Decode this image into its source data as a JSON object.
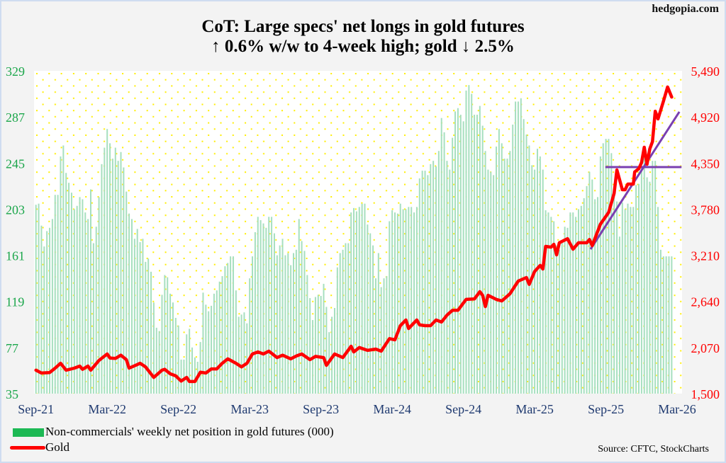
{
  "brand": "hedgopia.com",
  "chart_data": {
    "type": "bar+line",
    "title": "CoT: Large specs' net longs in gold futures",
    "subtitle": "↑ 0.6% w/w to 4-week high; gold ↓ 2.5%",
    "left_axis": {
      "ticks": [
        "329",
        "287",
        "245",
        "203",
        "161",
        "119",
        "77",
        "35"
      ],
      "ylim": [
        35,
        329
      ],
      "color": "#1aa64a"
    },
    "right_axis": {
      "ticks": [
        "5,490",
        "4,920",
        "4,350",
        "3,780",
        "3,210",
        "2,640",
        "2,070",
        "1,500"
      ],
      "ylim": [
        1500,
        5490
      ],
      "color": "#ff0000"
    },
    "x_ticks": [
      {
        "label": "Sep-21",
        "week": 0
      },
      {
        "label": "Mar-22",
        "week": 26
      },
      {
        "label": "Sep-22",
        "week": 52
      },
      {
        "label": "Mar-23",
        "week": 78
      },
      {
        "label": "Sep-23",
        "week": 104
      },
      {
        "label": "Mar-24",
        "week": 130
      },
      {
        "label": "Sep-24",
        "week": 156
      },
      {
        "label": "Mar-25",
        "week": 182
      },
      {
        "label": "Sep-25",
        "week": 208
      },
      {
        "label": "Mar-26",
        "week": 234
      }
    ],
    "grid": "dotted",
    "series": [
      {
        "name": "Non-commercials' weekly net position in gold futures (000)",
        "type": "bar",
        "color": "#a6dfbf",
        "values": [
          207,
          208,
          188,
          169,
          183,
          186,
          194,
          216,
          216,
          251,
          261,
          236,
          227,
          218,
          203,
          206,
          214,
          212,
          200,
          194,
          221,
          172,
          187,
          214,
          244,
          259,
          276,
          263,
          249,
          259,
          247,
          255,
          241,
          219,
          199,
          194,
          176,
          185,
          173,
          176,
          155,
          158,
          146,
          118,
          95,
          92,
          125,
          143,
          141,
          126,
          118,
          104,
          97,
          66,
          66,
          89,
          94,
          77,
          68,
          64,
          82,
          127,
          116,
          110,
          115,
          126,
          129,
          137,
          142,
          151,
          154,
          160,
          160,
          129,
          105,
          107,
          109,
          99,
          140,
          160,
          182,
          196,
          193,
          190,
          186,
          196,
          196,
          181,
          161,
          170,
          176,
          161,
          163,
          152,
          163,
          166,
          194,
          174,
          165,
          143,
          122,
          102,
          123,
          125,
          124,
          135,
          114,
          91,
          105,
          113,
          150,
          163,
          166,
          172,
          172,
          200,
          204,
          201,
          205,
          208,
          208,
          189,
          181,
          170,
          140,
          163,
          132,
          140,
          142,
          192,
          202,
          200,
          199,
          208,
          203,
          203,
          205,
          205,
          200,
          205,
          231,
          238,
          238,
          234,
          244,
          247,
          242,
          256,
          286,
          273,
          247,
          239,
          268,
          292,
          295,
          289,
          283,
          311,
          316,
          308,
          289,
          289,
          297,
          279,
          256,
          239,
          237,
          234,
          260,
          276,
          263,
          249,
          249,
          256,
          280,
          301,
          301,
          304,
          285,
          271,
          261,
          243,
          239,
          258,
          251,
          239,
          202,
          200,
          196,
          192,
          170,
          166,
          174,
          187,
          186,
          200,
          200,
          196,
          203,
          206,
          213,
          224,
          237,
          230,
          212,
          214,
          251,
          263,
          267,
          267,
          254,
          224,
          210,
          178,
          209,
          203,
          208,
          205,
          205,
          225,
          226,
          241,
          252,
          232,
          228,
          247,
          247,
          205,
          166,
          160,
          160,
          160,
          160
        ]
      },
      {
        "name": "Gold",
        "type": "line",
        "color": "#ff0000",
        "points": [
          [
            0,
            1790
          ],
          [
            2,
            1755
          ],
          [
            5,
            1760
          ],
          [
            7,
            1815
          ],
          [
            9,
            1875
          ],
          [
            11,
            1790
          ],
          [
            14,
            1815
          ],
          [
            16,
            1840
          ],
          [
            17,
            1800
          ],
          [
            19,
            1840
          ],
          [
            20,
            1790
          ],
          [
            23,
            1910
          ],
          [
            26,
            1990
          ],
          [
            27,
            1940
          ],
          [
            29,
            1935
          ],
          [
            31,
            1975
          ],
          [
            33,
            1920
          ],
          [
            34,
            1815
          ],
          [
            37,
            1860
          ],
          [
            38,
            1875
          ],
          [
            40,
            1830
          ],
          [
            43,
            1700
          ],
          [
            46,
            1790
          ],
          [
            47,
            1800
          ],
          [
            49,
            1745
          ],
          [
            51,
            1720
          ],
          [
            53,
            1655
          ],
          [
            55,
            1700
          ],
          [
            56,
            1650
          ],
          [
            58,
            1650
          ],
          [
            60,
            1765
          ],
          [
            62,
            1755
          ],
          [
            64,
            1805
          ],
          [
            66,
            1805
          ],
          [
            68,
            1875
          ],
          [
            70,
            1930
          ],
          [
            73,
            1875
          ],
          [
            75,
            1830
          ],
          [
            77,
            1875
          ],
          [
            79,
            1990
          ],
          [
            81,
            2015
          ],
          [
            83,
            1990
          ],
          [
            85,
            2025
          ],
          [
            88,
            1945
          ],
          [
            90,
            1975
          ],
          [
            93,
            1930
          ],
          [
            95,
            1965
          ],
          [
            97,
            1990
          ],
          [
            100,
            1920
          ],
          [
            102,
            1960
          ],
          [
            105,
            1945
          ],
          [
            106,
            1850
          ],
          [
            109,
            1990
          ],
          [
            112,
            1945
          ],
          [
            115,
            2085
          ],
          [
            116,
            2015
          ],
          [
            118,
            2070
          ],
          [
            121,
            2035
          ],
          [
            124,
            2050
          ],
          [
            126,
            2025
          ],
          [
            129,
            2180
          ],
          [
            131,
            2165
          ],
          [
            133,
            2340
          ],
          [
            135,
            2410
          ],
          [
            136,
            2305
          ],
          [
            139,
            2410
          ],
          [
            140,
            2350
          ],
          [
            142,
            2340
          ],
          [
            144,
            2340
          ],
          [
            146,
            2410
          ],
          [
            148,
            2385
          ],
          [
            150,
            2470
          ],
          [
            152,
            2530
          ],
          [
            154,
            2530
          ],
          [
            156,
            2620
          ],
          [
            157,
            2665
          ],
          [
            160,
            2670
          ],
          [
            162,
            2760
          ],
          [
            163,
            2715
          ],
          [
            164,
            2575
          ],
          [
            165,
            2715
          ],
          [
            168,
            2665
          ],
          [
            170,
            2645
          ],
          [
            173,
            2735
          ],
          [
            176,
            2890
          ],
          [
            179,
            2935
          ],
          [
            180,
            2850
          ],
          [
            182,
            3010
          ],
          [
            184,
            3085
          ],
          [
            185,
            3040
          ],
          [
            186,
            3320
          ],
          [
            188,
            3310
          ],
          [
            189,
            3345
          ],
          [
            190,
            3215
          ],
          [
            191,
            3365
          ],
          [
            194,
            3415
          ],
          [
            196,
            3285
          ],
          [
            198,
            3365
          ],
          [
            201,
            3365
          ],
          [
            202,
            3405
          ],
          [
            203,
            3330
          ],
          [
            206,
            3595
          ],
          [
            209,
            3740
          ],
          [
            211,
            3975
          ],
          [
            212,
            4265
          ],
          [
            214,
            4020
          ],
          [
            215,
            4020
          ],
          [
            216,
            4090
          ],
          [
            218,
            4090
          ],
          [
            218.5,
            4240
          ],
          [
            220,
            4280
          ],
          [
            221,
            4355
          ],
          [
            222,
            4545
          ],
          [
            223,
            4335
          ],
          [
            224,
            4525
          ],
          [
            225,
            4615
          ],
          [
            226,
            4990
          ],
          [
            227,
            4895
          ],
          [
            229,
            5115
          ],
          [
            230.5,
            5290
          ],
          [
            232,
            5165
          ]
        ]
      }
    ],
    "annotations": [
      {
        "type": "trendline",
        "color": "#7a3fb0",
        "from": [
          202.4,
          3285
        ],
        "to": [
          234.8,
          4983
        ]
      },
      {
        "type": "horizontal",
        "color": "#7a3fb0",
        "from": [
          207.8,
          4300
        ],
        "to": [
          235.6,
          4300
        ]
      }
    ],
    "legend": {
      "placement": "bottom-left",
      "items": [
        "Non-commercials' weekly net position in gold futures (000)",
        "Gold"
      ]
    },
    "source": "Source: CFTC, StockCharts"
  }
}
